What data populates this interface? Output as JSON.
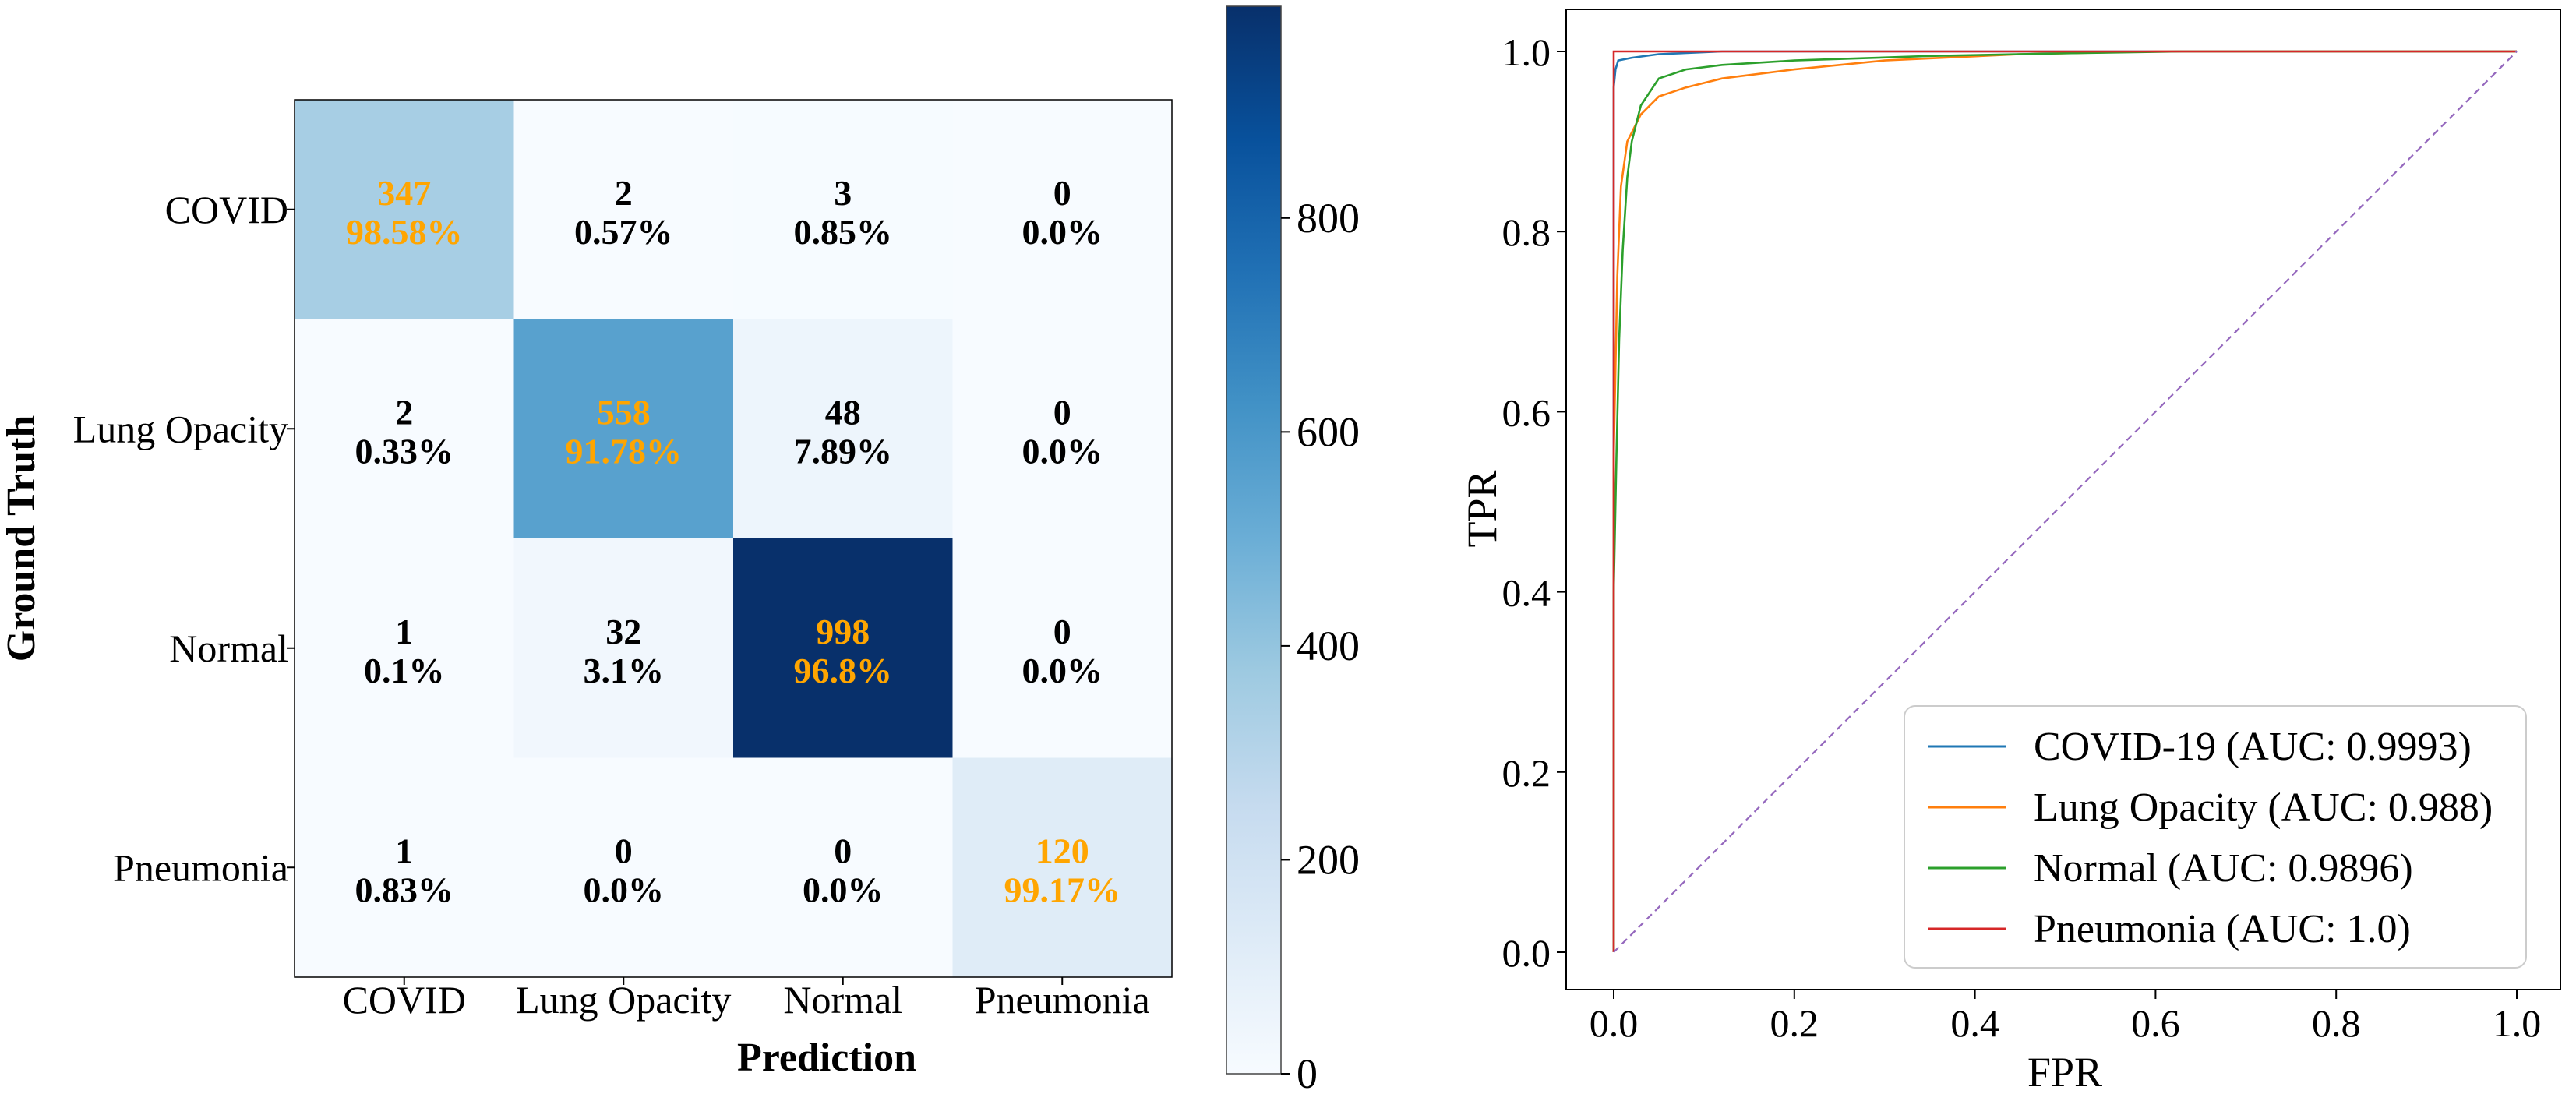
{
  "chart_data": [
    {
      "type": "heatmap",
      "xlabel": "Prediction",
      "ylabel": "Ground Truth",
      "x_categories": [
        "COVID",
        "Lung Opacity",
        "Normal",
        "Pneumonia"
      ],
      "y_categories": [
        "COVID",
        "Lung Opacity",
        "Normal",
        "Pneumonia"
      ],
      "counts": [
        [
          347,
          2,
          3,
          0
        ],
        [
          2,
          558,
          48,
          0
        ],
        [
          1,
          32,
          998,
          0
        ],
        [
          1,
          0,
          0,
          120
        ]
      ],
      "percents": [
        [
          "98.58%",
          "0.57%",
          "0.85%",
          "0.0%"
        ],
        [
          "0.33%",
          "91.78%",
          "7.89%",
          "0.0%"
        ],
        [
          "0.1%",
          "3.1%",
          "96.8%",
          "0.0%"
        ],
        [
          "0.83%",
          "0.0%",
          "0.0%",
          "99.17%"
        ]
      ],
      "colorbar": {
        "min": 0,
        "max": 998,
        "ticks": [
          0,
          200,
          400,
          600,
          800
        ]
      },
      "colormap": "Blues",
      "diagonal_text_color": "#FFA500",
      "off_diagonal_text_color": "#000000"
    },
    {
      "type": "line",
      "xlabel": "FPR",
      "ylabel": "TPR",
      "xlim": [
        0.0,
        1.0
      ],
      "ylim": [
        0.0,
        1.0
      ],
      "xticks": [
        "0.0",
        "0.2",
        "0.4",
        "0.6",
        "0.8",
        "1.0"
      ],
      "yticks": [
        "0.0",
        "0.2",
        "0.4",
        "0.6",
        "0.8",
        "1.0"
      ],
      "legend_position": "lower-right",
      "series": [
        {
          "name": "COVID-19 (AUC: 0.9993)",
          "color": "#1f77b4",
          "points": [
            [
              0,
              0
            ],
            [
              0,
              0.96
            ],
            [
              0.002,
              0.98
            ],
            [
              0.005,
              0.99
            ],
            [
              0.02,
              0.993
            ],
            [
              0.05,
              0.997
            ],
            [
              0.12,
              1.0
            ],
            [
              1,
              1
            ]
          ]
        },
        {
          "name": "Lung Opacity (AUC: 0.988)",
          "color": "#ff7f0e",
          "points": [
            [
              0,
              0
            ],
            [
              0,
              0.55
            ],
            [
              0.004,
              0.75
            ],
            [
              0.008,
              0.85
            ],
            [
              0.015,
              0.9
            ],
            [
              0.03,
              0.93
            ],
            [
              0.05,
              0.95
            ],
            [
              0.08,
              0.96
            ],
            [
              0.12,
              0.97
            ],
            [
              0.2,
              0.98
            ],
            [
              0.3,
              0.99
            ],
            [
              0.45,
              0.997
            ],
            [
              0.6,
              1.0
            ],
            [
              1,
              1
            ]
          ]
        },
        {
          "name": "Normal (AUC: 0.9896)",
          "color": "#2ca02c",
          "points": [
            [
              0,
              0
            ],
            [
              0,
              0.4
            ],
            [
              0.003,
              0.55
            ],
            [
              0.006,
              0.68
            ],
            [
              0.01,
              0.78
            ],
            [
              0.015,
              0.86
            ],
            [
              0.02,
              0.9
            ],
            [
              0.03,
              0.94
            ],
            [
              0.05,
              0.97
            ],
            [
              0.08,
              0.98
            ],
            [
              0.12,
              0.985
            ],
            [
              0.2,
              0.99
            ],
            [
              0.35,
              0.995
            ],
            [
              0.5,
              0.998
            ],
            [
              0.63,
              1.0
            ],
            [
              1,
              1
            ]
          ]
        },
        {
          "name": "Pneumonia (AUC: 1.0)",
          "color": "#d62728",
          "points": [
            [
              0,
              0
            ],
            [
              0,
              1.0
            ],
            [
              1,
              1
            ]
          ]
        },
        {
          "name": "",
          "color": "#9467bd",
          "dashed": true,
          "points": [
            [
              0,
              0
            ],
            [
              1,
              1
            ]
          ]
        }
      ]
    }
  ]
}
